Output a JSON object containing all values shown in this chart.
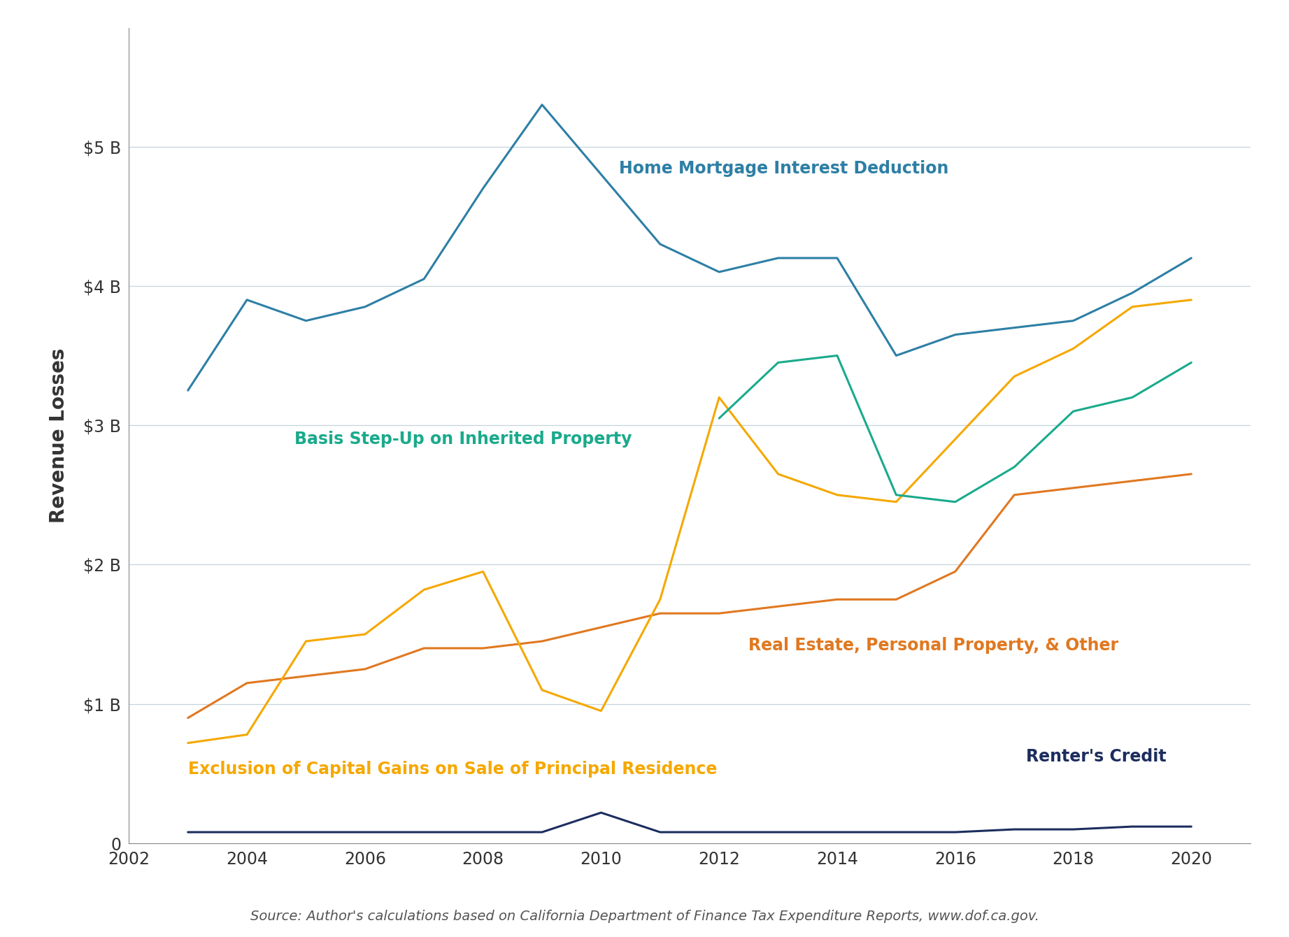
{
  "years": [
    2003,
    2004,
    2005,
    2006,
    2007,
    2008,
    2009,
    2010,
    2011,
    2012,
    2013,
    2014,
    2015,
    2016,
    2017,
    2018,
    2019,
    2020
  ],
  "home_mortgage": [
    3.25,
    3.9,
    3.75,
    3.85,
    4.05,
    4.7,
    5.3,
    4.8,
    4.3,
    4.1,
    4.2,
    4.2,
    3.5,
    3.65,
    3.7,
    3.75,
    3.95,
    4.2
  ],
  "basis_stepup": [
    null,
    null,
    null,
    null,
    null,
    null,
    null,
    null,
    null,
    3.05,
    3.45,
    3.5,
    2.5,
    2.45,
    2.7,
    3.1,
    3.2,
    3.45
  ],
  "capital_gains": [
    0.72,
    0.78,
    1.45,
    1.5,
    1.82,
    1.95,
    1.1,
    0.95,
    1.75,
    3.2,
    2.65,
    2.5,
    2.45,
    2.9,
    3.35,
    3.55,
    3.85,
    3.9
  ],
  "real_estate": [
    0.9,
    1.15,
    1.2,
    1.25,
    1.4,
    1.4,
    1.45,
    1.55,
    1.65,
    1.65,
    1.7,
    1.75,
    1.75,
    1.95,
    2.5,
    2.55,
    2.6,
    2.65
  ],
  "renters_credit": [
    0.08,
    0.08,
    0.08,
    0.08,
    0.08,
    0.08,
    0.08,
    0.22,
    0.08,
    0.08,
    0.08,
    0.08,
    0.08,
    0.08,
    0.1,
    0.1,
    0.12,
    0.12
  ],
  "colors": {
    "home_mortgage": "#2d7fa5",
    "basis_stepup": "#1aaa8c",
    "capital_gains": "#f5a800",
    "real_estate": "#e07820",
    "renters_credit": "#1c2d5e"
  },
  "labels": {
    "home_mortgage": "Home Mortgage Interest Deduction",
    "basis_stepup": "Basis Step-Up on Inherited Property",
    "capital_gains": "Exclusion of Capital Gains on Sale of Principal Residence",
    "real_estate": "Real Estate, Personal Property, & Other",
    "renters_credit": "Renter's Credit"
  },
  "ylabel": "Revenue Losses",
  "ylim": [
    0,
    5.85
  ],
  "xlim": [
    2002,
    2021
  ],
  "yticks": [
    0,
    1,
    2,
    3,
    4,
    5
  ],
  "ytick_labels": [
    "0",
    "$1 B",
    "$2 B",
    "$3 B",
    "$4 B",
    "$5 B"
  ],
  "xticks": [
    2002,
    2004,
    2006,
    2008,
    2010,
    2012,
    2014,
    2016,
    2018,
    2020
  ],
  "source_text": "Source: Author's calculations based on California Department of Finance Tax Expenditure Reports, www.dof.ca.gov.",
  "linewidth": 2.2,
  "label_fontsize": 17,
  "tick_fontsize": 17,
  "ylabel_fontsize": 20,
  "source_fontsize": 14
}
